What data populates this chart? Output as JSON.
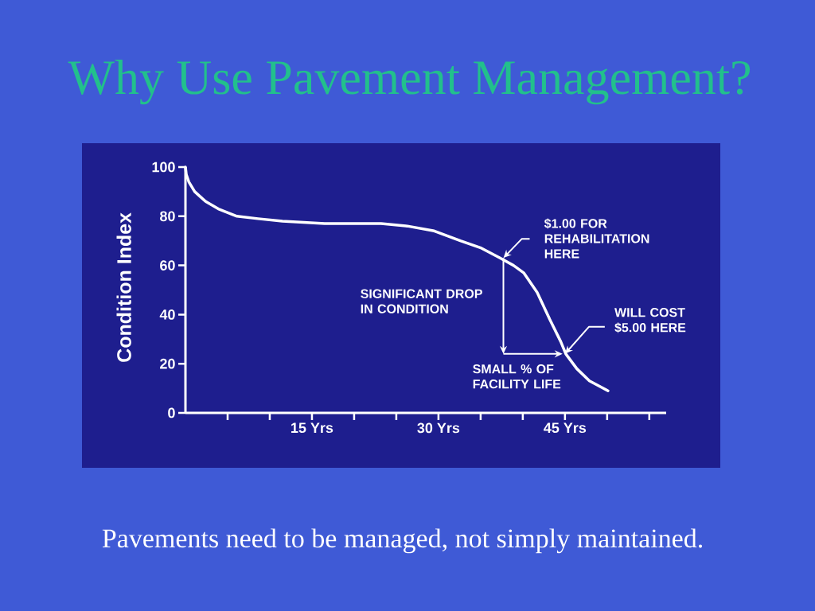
{
  "chart_data": {
    "type": "line",
    "title": "Why Use Pavement Management?",
    "ylabel": "Condition Index",
    "x": [
      0,
      0.1,
      0.4,
      1.1,
      2.4,
      3.9,
      6.1,
      8.6,
      11.5,
      16.5,
      23.2,
      26.3,
      29.5,
      32.6,
      35.1,
      37.3,
      38.9,
      40.1,
      41.7,
      43.2,
      44.5,
      45.1,
      46.4,
      47.9,
      50.1
    ],
    "values": [
      100,
      97,
      94,
      90,
      86,
      83,
      80,
      79,
      78,
      77,
      77,
      76,
      74,
      70,
      67,
      63,
      60,
      57,
      49,
      38,
      29,
      24,
      18,
      13,
      9
    ],
    "color": "#ffffff",
    "xlim": [
      0,
      57
    ],
    "ylim": [
      0,
      100
    ],
    "xticks": [
      {
        "value": 5,
        "label": null
      },
      {
        "value": 10,
        "label": null
      },
      {
        "value": 15,
        "label": "15 Yrs"
      },
      {
        "value": 20,
        "label": null
      },
      {
        "value": 25,
        "label": null
      },
      {
        "value": 30,
        "label": "30 Yrs"
      },
      {
        "value": 35,
        "label": null
      },
      {
        "value": 40,
        "label": null
      },
      {
        "value": 45,
        "label": "45 Yrs"
      },
      {
        "value": 50,
        "label": null
      },
      {
        "value": 55,
        "label": null
      }
    ],
    "yticks": [
      0,
      20,
      40,
      60,
      80,
      100
    ],
    "annotations": [
      {
        "text": "$1.00 FOR REHABILITATION HERE",
        "x": 37.7,
        "y": 63
      },
      {
        "text": "WILL COST $5.00 HERE",
        "x": 45,
        "y": 24
      },
      "SIGNIFICANT DROP IN CONDITION",
      "SMALL % OF FACILITY LIFE",
      "Pavements need to be managed, not simply maintained."
    ]
  }
}
